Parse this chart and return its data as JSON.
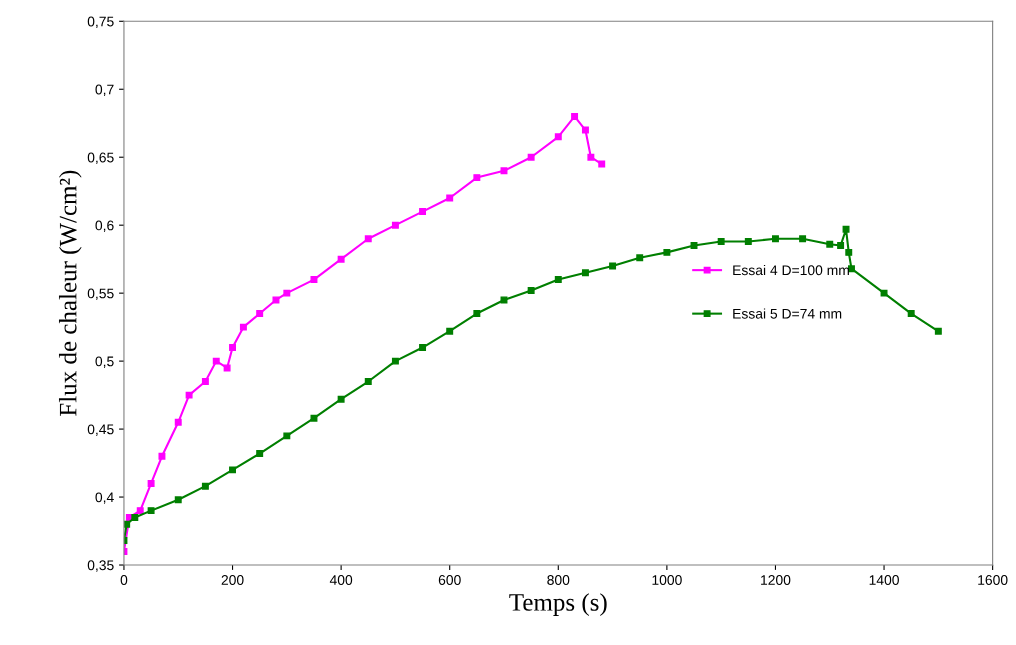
{
  "chart_data": {
    "type": "line",
    "xlabel": "Temps (s)",
    "ylabel": "Flux de chaleur (W/cm²)",
    "xlim": [
      0,
      1600
    ],
    "xticks": [
      0,
      200,
      400,
      600,
      800,
      1000,
      1200,
      1400,
      1600
    ],
    "ylim": [
      0.35,
      0.75
    ],
    "yticks": [
      {
        "value": 0.35,
        "label": "0,35"
      },
      {
        "value": 0.4,
        "label": "0,4"
      },
      {
        "value": 0.45,
        "label": "0,45"
      },
      {
        "value": 0.5,
        "label": "0,5"
      },
      {
        "value": 0.55,
        "label": "0,55"
      },
      {
        "value": 0.6,
        "label": "0,6"
      },
      {
        "value": 0.65,
        "label": "0,65"
      },
      {
        "value": 0.7,
        "label": "0,7"
      },
      {
        "value": 0.75,
        "label": "0,75"
      }
    ],
    "grid": false,
    "legend": "right",
    "marker": "square",
    "line_style": "solid",
    "series": [
      {
        "name": "Essai 4 D=100 mm",
        "color": "#ff00ff",
        "x": [
          0,
          10,
          30,
          50,
          70,
          100,
          120,
          150,
          170,
          190,
          200,
          220,
          250,
          280,
          300,
          350,
          400,
          450,
          500,
          550,
          600,
          650,
          700,
          750,
          800,
          830,
          850,
          860,
          880
        ],
        "values": [
          0.36,
          0.385,
          0.39,
          0.41,
          0.43,
          0.455,
          0.475,
          0.485,
          0.5,
          0.495,
          0.51,
          0.525,
          0.535,
          0.545,
          0.55,
          0.56,
          0.575,
          0.59,
          0.6,
          0.61,
          0.62,
          0.635,
          0.64,
          0.65,
          0.665,
          0.68,
          0.67,
          0.65,
          0.645
        ]
      },
      {
        "name": "Essai 5 D=74 mm",
        "color": "#007f00",
        "x": [
          0,
          5,
          20,
          50,
          100,
          150,
          200,
          250,
          300,
          350,
          400,
          450,
          500,
          550,
          600,
          650,
          700,
          750,
          800,
          850,
          900,
          950,
          1000,
          1050,
          1100,
          1150,
          1200,
          1250,
          1300,
          1320,
          1330,
          1335,
          1340,
          1400,
          1450,
          1500
        ],
        "values": [
          0.368,
          0.38,
          0.385,
          0.39,
          0.398,
          0.408,
          0.42,
          0.432,
          0.445,
          0.458,
          0.472,
          0.485,
          0.5,
          0.51,
          0.522,
          0.535,
          0.545,
          0.552,
          0.56,
          0.565,
          0.57,
          0.576,
          0.58,
          0.585,
          0.588,
          0.588,
          0.59,
          0.59,
          0.586,
          0.585,
          0.597,
          0.58,
          0.568,
          0.55,
          0.535,
          0.522
        ]
      }
    ]
  }
}
